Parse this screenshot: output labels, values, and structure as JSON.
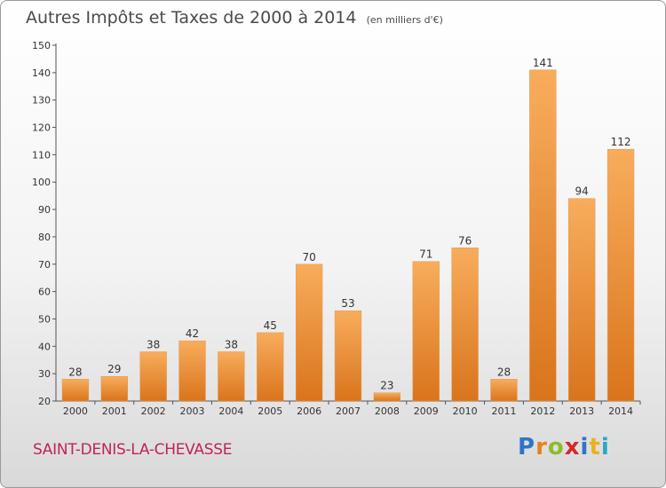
{
  "header": {
    "title": "Autres Impôts et Taxes de 2000 à 2014",
    "unit": "(en milliers d'€)"
  },
  "commune": "SAINT-DENIS-LA-CHEVASSE",
  "logo": {
    "text": "Proxiti",
    "letters": [
      {
        "ch": "P",
        "color": "#2f74c8"
      },
      {
        "ch": "r",
        "color": "#e8801f"
      },
      {
        "ch": "o",
        "color": "#8cbc2c"
      },
      {
        "ch": "x",
        "color": "#d22a2a"
      },
      {
        "ch": "i",
        "color": "#2f74c8"
      },
      {
        "ch": "t",
        "color": "#e8b21f"
      },
      {
        "ch": "i",
        "color": "#2aa7c8"
      }
    ]
  },
  "colors": {
    "bar_light": "#f8ad5c",
    "bar_dark": "#d9741c",
    "axis": "#555555",
    "text": "#333333"
  },
  "chart_data": {
    "type": "bar",
    "categories": [
      "2000",
      "2001",
      "2002",
      "2003",
      "2004",
      "2005",
      "2006",
      "2007",
      "2008",
      "2009",
      "2010",
      "2011",
      "2012",
      "2013",
      "2014"
    ],
    "values": [
      28,
      29,
      38,
      42,
      38,
      45,
      70,
      53,
      23,
      71,
      76,
      28,
      141,
      94,
      112
    ],
    "ylim": [
      20,
      150
    ],
    "yticks": [
      20,
      30,
      40,
      50,
      60,
      70,
      80,
      90,
      100,
      110,
      120,
      130,
      140,
      150
    ],
    "grid": false,
    "title": "Autres Impôts et Taxes de 2000 à 2014",
    "xlabel": "",
    "ylabel": ""
  }
}
